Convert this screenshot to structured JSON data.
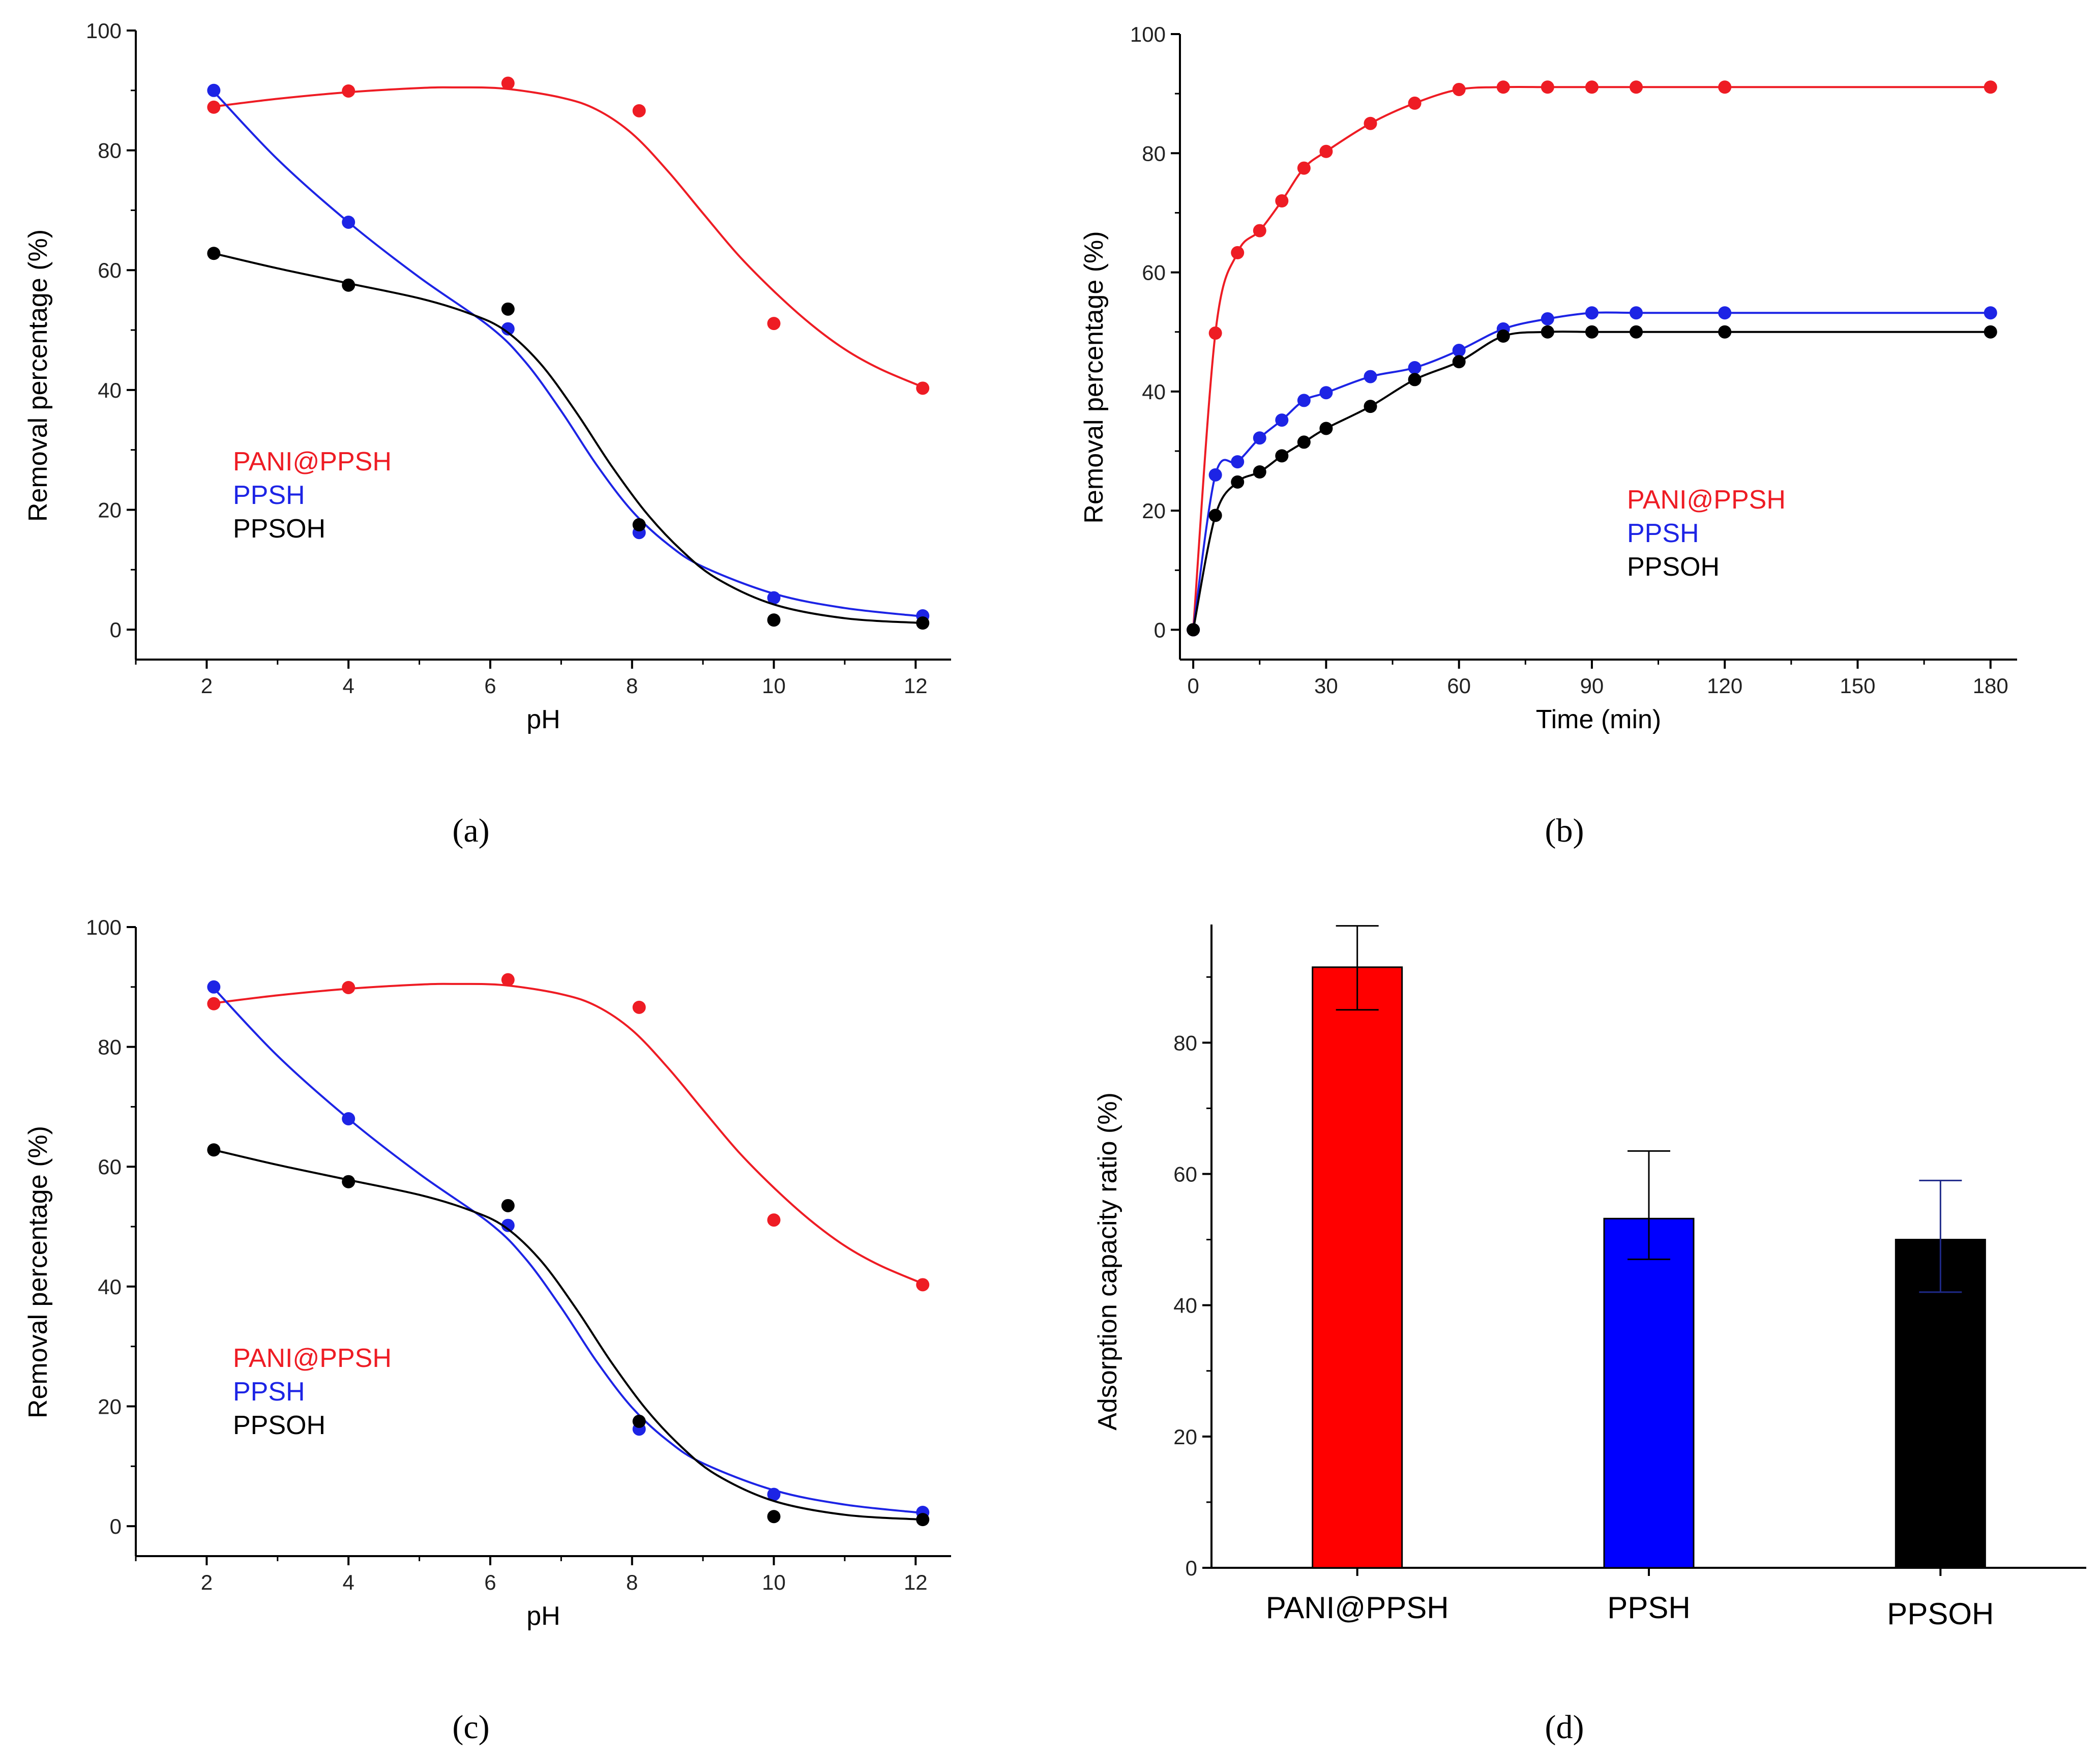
{
  "colors": {
    "red": "#ee1c24",
    "blue": "#1d24e5",
    "black": "#000000",
    "bar_border": "#000000",
    "errbar": "#000000",
    "errbar_blue": "#1f2a8a"
  },
  "panels": {
    "a": "(a)",
    "b": "(b)",
    "c": "(c)",
    "d": "(d)"
  },
  "chart_data": [
    {
      "panel": "a",
      "type": "scatter",
      "xlabel": "pH",
      "ylabel": "Removal percentage (%)",
      "xlim": [
        1,
        12.5
      ],
      "ylim": [
        -5,
        100
      ],
      "xticks": [
        2,
        4,
        6,
        8,
        10,
        12
      ],
      "yticks": [
        0,
        20,
        40,
        60,
        80,
        100
      ],
      "legend_position": "center-left",
      "series": [
        {
          "name": "PANI@PPSH",
          "color": "#ee1c24",
          "points": [
            [
              2.1,
              87.2
            ],
            [
              4,
              89.9
            ],
            [
              6.25,
              91.2
            ],
            [
              8.1,
              86.6
            ],
            [
              10,
              51.1
            ],
            [
              12.1,
              40.3
            ]
          ],
          "fit": [
            [
              2.1,
              87.3
            ],
            [
              3,
              88.6
            ],
            [
              4,
              89.7
            ],
            [
              5,
              90.4
            ],
            [
              5.5,
              90.5
            ],
            [
              6.2,
              90.3
            ],
            [
              7,
              88.8
            ],
            [
              7.5,
              86.8
            ],
            [
              8,
              82.8
            ],
            [
              8.5,
              76.6
            ],
            [
              9,
              69.5
            ],
            [
              9.5,
              62.5
            ],
            [
              10,
              56.5
            ],
            [
              10.5,
              51.2
            ],
            [
              11,
              46.8
            ],
            [
              11.5,
              43.5
            ],
            [
              12.1,
              40.5
            ]
          ]
        },
        {
          "name": "PPSH",
          "color": "#1d24e5",
          "points": [
            [
              2.1,
              90.0
            ],
            [
              4,
              68.0
            ],
            [
              6.25,
              50.2
            ],
            [
              8.1,
              16.2
            ],
            [
              10,
              5.3
            ],
            [
              12.1,
              2.3
            ]
          ],
          "fit": [
            [
              2.1,
              89.8
            ],
            [
              3,
              78.5
            ],
            [
              4,
              68.0
            ],
            [
              5,
              58.8
            ],
            [
              6,
              50.5
            ],
            [
              6.5,
              44.6
            ],
            [
              7,
              36.5
            ],
            [
              7.5,
              27.5
            ],
            [
              8,
              19.8
            ],
            [
              8.5,
              14.3
            ],
            [
              9,
              10.5
            ],
            [
              10,
              6.0
            ],
            [
              11,
              3.6
            ],
            [
              12.1,
              2.2
            ]
          ]
        },
        {
          "name": "PPSOH",
          "color": "#000000",
          "points": [
            [
              2.1,
              62.8
            ],
            [
              4,
              57.5
            ],
            [
              6.25,
              53.5
            ],
            [
              8.1,
              17.5
            ],
            [
              10,
              1.6
            ],
            [
              12.1,
              1.1
            ]
          ],
          "fit": [
            [
              2.1,
              62.8
            ],
            [
              3,
              60.3
            ],
            [
              4,
              57.8
            ],
            [
              5,
              55.3
            ],
            [
              5.7,
              52.8
            ],
            [
              6.2,
              50.0
            ],
            [
              6.7,
              44.5
            ],
            [
              7.2,
              36.5
            ],
            [
              7.7,
              27.5
            ],
            [
              8.2,
              19.5
            ],
            [
              8.7,
              13.2
            ],
            [
              9.2,
              8.5
            ],
            [
              10,
              4.2
            ],
            [
              11,
              1.9
            ],
            [
              12.1,
              1.1
            ]
          ]
        }
      ]
    },
    {
      "panel": "b",
      "type": "scatter",
      "xlabel": "Time (min)",
      "ylabel": "Removal percentage (%)",
      "xlim": [
        -3,
        186
      ],
      "ylim": [
        -5,
        100
      ],
      "xticks": [
        0,
        30,
        60,
        90,
        120,
        150,
        180
      ],
      "yticks": [
        0,
        20,
        40,
        60,
        80,
        100
      ],
      "legend_position": "center-right",
      "series": [
        {
          "name": "PANI@PPSH",
          "color": "#ee1c24",
          "points": [
            [
              0,
              0
            ],
            [
              5,
              49.8
            ],
            [
              10,
              63.3
            ],
            [
              15,
              67.0
            ],
            [
              20,
              72.0
            ],
            [
              25,
              77.5
            ],
            [
              30,
              80.3
            ],
            [
              40,
              85.0
            ],
            [
              50,
              88.4
            ],
            [
              60,
              90.7
            ],
            [
              70,
              91.1
            ],
            [
              80,
              91.1
            ],
            [
              90,
              91.1
            ],
            [
              100,
              91.1
            ],
            [
              120,
              91.1
            ],
            [
              180,
              91.1
            ]
          ]
        },
        {
          "name": "PPSH",
          "color": "#1d24e5",
          "points": [
            [
              0,
              0
            ],
            [
              5,
              26.0
            ],
            [
              10,
              28.2
            ],
            [
              15,
              32.2
            ],
            [
              20,
              35.2
            ],
            [
              25,
              38.5
            ],
            [
              30,
              39.8
            ],
            [
              40,
              42.5
            ],
            [
              50,
              44.0
            ],
            [
              60,
              46.9
            ],
            [
              70,
              50.5
            ],
            [
              80,
              52.2
            ],
            [
              90,
              53.2
            ],
            [
              100,
              53.2
            ],
            [
              120,
              53.2
            ],
            [
              180,
              53.2
            ]
          ]
        },
        {
          "name": "PPSOH",
          "color": "#000000",
          "points": [
            [
              0,
              0
            ],
            [
              5,
              19.2
            ],
            [
              10,
              24.8
            ],
            [
              15,
              26.5
            ],
            [
              20,
              29.2
            ],
            [
              25,
              31.5
            ],
            [
              30,
              33.8
            ],
            [
              40,
              37.5
            ],
            [
              50,
              42.0
            ],
            [
              60,
              45.0
            ],
            [
              70,
              49.3
            ],
            [
              80,
              50.0
            ],
            [
              90,
              50.0
            ],
            [
              100,
              50.0
            ],
            [
              120,
              50.0
            ],
            [
              180,
              50.0
            ]
          ]
        }
      ]
    },
    {
      "panel": "c",
      "type": "scatter",
      "xlabel": "pH",
      "ylabel": "Removal percentage (%)",
      "xlim": [
        1,
        12.5
      ],
      "ylim": [
        -5,
        100
      ],
      "xticks": [
        2,
        4,
        6,
        8,
        10,
        12
      ],
      "yticks": [
        0,
        20,
        40,
        60,
        80,
        100
      ],
      "legend_position": "center-left",
      "series": [
        {
          "name": "PANI@PPSH",
          "color": "#ee1c24",
          "points": [
            [
              2.1,
              87.2
            ],
            [
              4,
              89.9
            ],
            [
              6.25,
              91.2
            ],
            [
              8.1,
              86.6
            ],
            [
              10,
              51.1
            ],
            [
              12.1,
              40.3
            ]
          ],
          "fit": [
            [
              2.1,
              87.3
            ],
            [
              3,
              88.6
            ],
            [
              4,
              89.7
            ],
            [
              5,
              90.4
            ],
            [
              5.5,
              90.5
            ],
            [
              6.2,
              90.3
            ],
            [
              7,
              88.8
            ],
            [
              7.5,
              86.8
            ],
            [
              8,
              82.8
            ],
            [
              8.5,
              76.6
            ],
            [
              9,
              69.5
            ],
            [
              9.5,
              62.5
            ],
            [
              10,
              56.5
            ],
            [
              10.5,
              51.2
            ],
            [
              11,
              46.8
            ],
            [
              11.5,
              43.5
            ],
            [
              12.1,
              40.5
            ]
          ]
        },
        {
          "name": "PPSH",
          "color": "#1d24e5",
          "points": [
            [
              2.1,
              90.0
            ],
            [
              4,
              68.0
            ],
            [
              6.25,
              50.2
            ],
            [
              8.1,
              16.2
            ],
            [
              10,
              5.3
            ],
            [
              12.1,
              2.3
            ]
          ],
          "fit": [
            [
              2.1,
              89.8
            ],
            [
              3,
              78.5
            ],
            [
              4,
              68.0
            ],
            [
              5,
              58.8
            ],
            [
              6,
              50.5
            ],
            [
              6.5,
              44.6
            ],
            [
              7,
              36.5
            ],
            [
              7.5,
              27.5
            ],
            [
              8,
              19.8
            ],
            [
              8.5,
              14.3
            ],
            [
              9,
              10.5
            ],
            [
              10,
              6.0
            ],
            [
              11,
              3.6
            ],
            [
              12.1,
              2.2
            ]
          ]
        },
        {
          "name": "PPSOH",
          "color": "#000000",
          "points": [
            [
              2.1,
              62.8
            ],
            [
              4,
              57.5
            ],
            [
              6.25,
              53.5
            ],
            [
              8.1,
              17.5
            ],
            [
              10,
              1.6
            ],
            [
              12.1,
              1.1
            ]
          ],
          "fit": [
            [
              2.1,
              62.8
            ],
            [
              3,
              60.3
            ],
            [
              4,
              57.8
            ],
            [
              5,
              55.3
            ],
            [
              5.7,
              52.8
            ],
            [
              6.2,
              50.0
            ],
            [
              6.7,
              44.5
            ],
            [
              7.2,
              36.5
            ],
            [
              7.7,
              27.5
            ],
            [
              8.2,
              19.5
            ],
            [
              8.7,
              13.2
            ],
            [
              9.2,
              8.5
            ],
            [
              10,
              4.2
            ],
            [
              11,
              1.9
            ],
            [
              12.1,
              1.1
            ]
          ]
        }
      ]
    },
    {
      "panel": "d",
      "type": "bar",
      "categories": [
        "PANI@PPSH",
        "PPSH",
        "PPSOH"
      ],
      "values": [
        91.5,
        53.2,
        50.0
      ],
      "errors": [
        [
          85.0,
          97.8
        ],
        [
          47.0,
          63.5
        ],
        [
          42.0,
          59.0
        ]
      ],
      "colors": [
        "#ff0000",
        "#0000ff",
        "#000000"
      ],
      "xlabel": "",
      "ylabel": "Adsorption capacity ratio (%)",
      "ylim": [
        0,
        98
      ],
      "yticks": [
        0,
        20,
        40,
        60,
        80
      ]
    }
  ]
}
